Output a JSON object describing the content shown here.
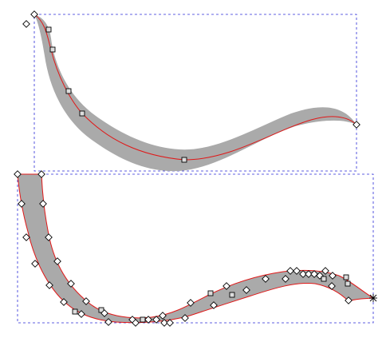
{
  "canvas": {
    "background": "#ffffff",
    "bbox_color": "#2b2bd8",
    "stroke_color": "#aaaaaa",
    "path_color": "#e01818"
  },
  "objects": [
    {
      "id": "top-stroke",
      "kind": "stroked-path",
      "selected": true,
      "node_types": [
        "diamond",
        "square"
      ]
    },
    {
      "id": "bottom-shape",
      "kind": "outlined-shape",
      "selected": true,
      "node_types": [
        "diamond",
        "square",
        "cross"
      ]
    }
  ]
}
